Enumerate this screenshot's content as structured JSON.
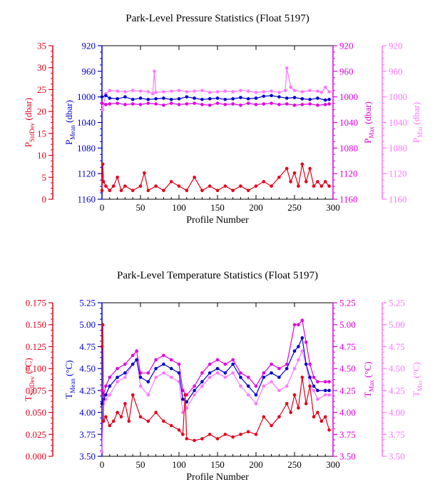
{
  "chart_data": [
    {
      "type": "line",
      "title": "Park-Level Pressure Statistics (Float 5197)",
      "xlabel": "Profile Number",
      "xlim": [
        0,
        300
      ],
      "xticks": [
        0,
        50,
        100,
        150,
        200,
        250,
        300
      ],
      "axes": [
        {
          "id": "stddev",
          "side": "left-outer",
          "label_main": "P",
          "label_sub": "StdDev",
          "label_unit": " (dbar)",
          "color": "#e4001b",
          "ylim": [
            0,
            35
          ],
          "reversed": false,
          "ticks": [
            0,
            5,
            10,
            15,
            20,
            25,
            30,
            35
          ]
        },
        {
          "id": "mean",
          "side": "left-inner",
          "label_main": "P",
          "label_sub": "Mean",
          "label_unit": " (dbar)",
          "color": "#0000cc",
          "ylim": [
            920,
            1160
          ],
          "reversed": true,
          "ticks": [
            920,
            960,
            1000,
            1040,
            1080,
            1120,
            1160
          ]
        },
        {
          "id": "max",
          "side": "right-inner",
          "label_main": "P",
          "label_sub": "Max",
          "label_unit": " (dbar)",
          "color": "#e000e0",
          "ylim": [
            920,
            1160
          ],
          "reversed": true,
          "ticks": [
            920,
            960,
            1000,
            1040,
            1080,
            1120,
            1160
          ]
        },
        {
          "id": "min",
          "side": "right-outer",
          "label_main": "P",
          "label_sub": "Min",
          "label_unit": " (dbar)",
          "color": "#ff77ff",
          "ylim": [
            920,
            1160
          ],
          "reversed": true,
          "ticks": [
            920,
            960,
            1000,
            1040,
            1080,
            1120,
            1160
          ]
        }
      ],
      "series": [
        {
          "axis": "min",
          "color": "#ff77ff",
          "x": [
            0,
            1,
            5,
            10,
            20,
            30,
            40,
            50,
            60,
            66,
            68,
            70,
            80,
            90,
            100,
            110,
            120,
            130,
            140,
            150,
            160,
            170,
            180,
            190,
            200,
            210,
            220,
            230,
            238,
            240,
            245,
            250,
            260,
            270,
            280,
            285,
            290,
            295
          ],
          "y": [
            1010,
            1020,
            995,
            990,
            991,
            992,
            990,
            991,
            992,
            995,
            960,
            993,
            992,
            991,
            990,
            992,
            991,
            990,
            993,
            992,
            991,
            992,
            990,
            991,
            993,
            992,
            991,
            993,
            990,
            955,
            985,
            990,
            992,
            990,
            991,
            993,
            985,
            992
          ]
        },
        {
          "axis": "max",
          "color": "#e000e0",
          "x": [
            0,
            5,
            10,
            20,
            30,
            40,
            50,
            60,
            70,
            80,
            90,
            100,
            110,
            120,
            130,
            140,
            150,
            160,
            170,
            180,
            190,
            200,
            210,
            220,
            230,
            240,
            250,
            260,
            270,
            280,
            290,
            295
          ],
          "y": [
            1010,
            1012,
            1011,
            1010,
            1012,
            1011,
            1012,
            1010,
            1011,
            1013,
            1010,
            1012,
            1011,
            1010,
            1012,
            1013,
            1010,
            1012,
            1011,
            1013,
            1010,
            1012,
            1011,
            1010,
            1012,
            1011,
            1013,
            1012,
            1011,
            1013,
            1012,
            1011
          ]
        },
        {
          "axis": "mean",
          "color": "#0000cc",
          "x": [
            0,
            5,
            10,
            20,
            30,
            40,
            50,
            60,
            70,
            80,
            90,
            100,
            110,
            120,
            130,
            140,
            150,
            160,
            170,
            180,
            190,
            200,
            210,
            220,
            230,
            240,
            250,
            260,
            270,
            280,
            290,
            295
          ],
          "y": [
            1000,
            998,
            1002,
            1003,
            1000,
            1004,
            1002,
            1004,
            1003,
            1002,
            1004,
            1003,
            1000,
            1002,
            1004,
            1003,
            1002,
            1004,
            1003,
            1001,
            1003,
            1002,
            999,
            998,
            1000,
            1002,
            1001,
            1003,
            1004,
            1002,
            1005,
            1004
          ]
        },
        {
          "axis": "stddev",
          "color": "#e4001b",
          "x": [
            0,
            1,
            2,
            5,
            10,
            15,
            20,
            25,
            30,
            40,
            50,
            55,
            60,
            70,
            80,
            90,
            100,
            110,
            120,
            130,
            140,
            150,
            160,
            170,
            180,
            190,
            200,
            210,
            220,
            230,
            240,
            245,
            250,
            255,
            260,
            265,
            270,
            275,
            280,
            285,
            290,
            295
          ],
          "y": [
            2,
            8,
            4,
            3,
            2,
            3,
            5,
            2,
            3,
            2,
            3,
            6,
            2,
            3,
            2,
            4,
            3,
            2,
            5,
            2,
            3,
            2,
            3,
            2,
            3,
            2,
            3,
            4,
            3,
            5,
            7,
            4,
            6,
            3,
            8,
            4,
            7,
            3,
            4,
            3,
            4,
            3
          ]
        }
      ]
    },
    {
      "type": "line",
      "title": "Park-Level Temperature Statistics (Float 5197)",
      "xlabel": "Profile Number",
      "xlim": [
        0,
        300
      ],
      "xticks": [
        0,
        50,
        100,
        150,
        200,
        250,
        300
      ],
      "axes": [
        {
          "id": "stddev",
          "side": "left-outer",
          "label_main": "T",
          "label_sub": "StdDev",
          "label_unit": " (°C)",
          "color": "#e4001b",
          "ylim": [
            0,
            0.175
          ],
          "reversed": false,
          "ticks": [
            0.0,
            0.025,
            0.05,
            0.075,
            0.1,
            0.125,
            0.15,
            0.175
          ],
          "tick_decimals": 3
        },
        {
          "id": "mean",
          "side": "left-inner",
          "label_main": "T",
          "label_sub": "Mean",
          "label_unit": " (°C)",
          "color": "#0000cc",
          "ylim": [
            3.5,
            5.25
          ],
          "reversed": false,
          "ticks": [
            3.5,
            3.75,
            4.0,
            4.25,
            4.5,
            4.75,
            5.0,
            5.25
          ],
          "tick_decimals": 2
        },
        {
          "id": "max",
          "side": "right-inner",
          "label_main": "T",
          "label_sub": "Max",
          "label_unit": " (°C)",
          "color": "#e000e0",
          "ylim": [
            3.5,
            5.25
          ],
          "reversed": false,
          "ticks": [
            3.5,
            3.75,
            4.0,
            4.25,
            4.5,
            4.75,
            5.0,
            5.25
          ],
          "tick_decimals": 2
        },
        {
          "id": "min",
          "side": "right-outer",
          "label_main": "T",
          "label_sub": "Min",
          "label_unit": " (°C)",
          "color": "#ff77ff",
          "ylim": [
            3.5,
            5.25
          ],
          "reversed": false,
          "ticks": [
            3.5,
            3.75,
            4.0,
            4.25,
            4.5,
            4.75,
            5.0,
            5.25
          ],
          "tick_decimals": 2
        }
      ],
      "series": [
        {
          "axis": "min",
          "color": "#ff77ff",
          "x": [
            0,
            2,
            5,
            10,
            20,
            30,
            40,
            45,
            50,
            60,
            70,
            80,
            90,
            100,
            105,
            110,
            120,
            130,
            140,
            150,
            160,
            170,
            180,
            190,
            200,
            210,
            220,
            230,
            240,
            250,
            255,
            260,
            265,
            270,
            275,
            280,
            290,
            295
          ],
          "y": [
            3.55,
            4.1,
            4.15,
            4.2,
            4.35,
            4.4,
            4.55,
            4.6,
            4.3,
            4.2,
            4.4,
            4.45,
            4.4,
            4.35,
            4.0,
            4.05,
            4.2,
            4.3,
            4.4,
            4.45,
            4.4,
            4.45,
            4.3,
            4.2,
            4.1,
            4.3,
            4.35,
            4.25,
            4.3,
            4.5,
            4.6,
            4.7,
            4.55,
            4.3,
            4.25,
            4.15,
            4.2,
            4.2
          ]
        },
        {
          "axis": "max",
          "color": "#e000e0",
          "x": [
            0,
            2,
            5,
            10,
            20,
            30,
            40,
            45,
            50,
            60,
            70,
            80,
            90,
            100,
            105,
            110,
            120,
            130,
            140,
            150,
            160,
            170,
            180,
            190,
            200,
            210,
            220,
            230,
            240,
            250,
            255,
            260,
            265,
            270,
            275,
            280,
            290,
            295
          ],
          "y": [
            4.25,
            4.2,
            4.3,
            4.4,
            4.5,
            4.55,
            4.65,
            4.7,
            4.45,
            4.45,
            4.6,
            4.65,
            4.6,
            4.55,
            4.25,
            4.2,
            4.3,
            4.45,
            4.55,
            4.6,
            4.55,
            4.6,
            4.45,
            4.4,
            4.3,
            4.45,
            4.55,
            4.5,
            4.55,
            5.0,
            5.0,
            5.05,
            4.8,
            4.55,
            4.4,
            4.35,
            4.35,
            4.35
          ]
        },
        {
          "axis": "mean",
          "color": "#0000cc",
          "x": [
            0,
            2,
            5,
            10,
            20,
            30,
            40,
            45,
            50,
            60,
            70,
            80,
            90,
            100,
            105,
            110,
            120,
            130,
            140,
            150,
            160,
            170,
            180,
            190,
            200,
            210,
            220,
            230,
            240,
            250,
            255,
            260,
            265,
            270,
            275,
            280,
            290,
            295
          ],
          "y": [
            4.1,
            4.15,
            4.2,
            4.3,
            4.4,
            4.45,
            4.55,
            4.6,
            4.4,
            4.35,
            4.5,
            4.55,
            4.5,
            4.45,
            4.15,
            4.12,
            4.25,
            4.35,
            4.45,
            4.5,
            4.45,
            4.55,
            4.4,
            4.3,
            4.2,
            4.4,
            4.45,
            4.4,
            4.5,
            4.7,
            4.75,
            4.85,
            4.55,
            4.4,
            4.3,
            4.25,
            4.25,
            4.25
          ]
        },
        {
          "axis": "stddev",
          "color": "#e4001b",
          "x": [
            0,
            1,
            2,
            5,
            10,
            15,
            20,
            25,
            30,
            35,
            40,
            50,
            60,
            70,
            80,
            90,
            100,
            105,
            108,
            110,
            120,
            130,
            140,
            150,
            160,
            170,
            180,
            190,
            200,
            210,
            220,
            230,
            240,
            245,
            250,
            255,
            260,
            265,
            270,
            275,
            280,
            285,
            290,
            295
          ],
          "y": [
            0.125,
            0.15,
            0.04,
            0.045,
            0.035,
            0.04,
            0.05,
            0.045,
            0.06,
            0.04,
            0.07,
            0.045,
            0.04,
            0.05,
            0.04,
            0.035,
            0.03,
            0.025,
            0.07,
            0.02,
            0.018,
            0.02,
            0.025,
            0.02,
            0.025,
            0.022,
            0.025,
            0.028,
            0.025,
            0.045,
            0.035,
            0.045,
            0.06,
            0.05,
            0.07,
            0.055,
            0.09,
            0.06,
            0.08,
            0.045,
            0.05,
            0.04,
            0.045,
            0.03
          ]
        }
      ]
    }
  ]
}
